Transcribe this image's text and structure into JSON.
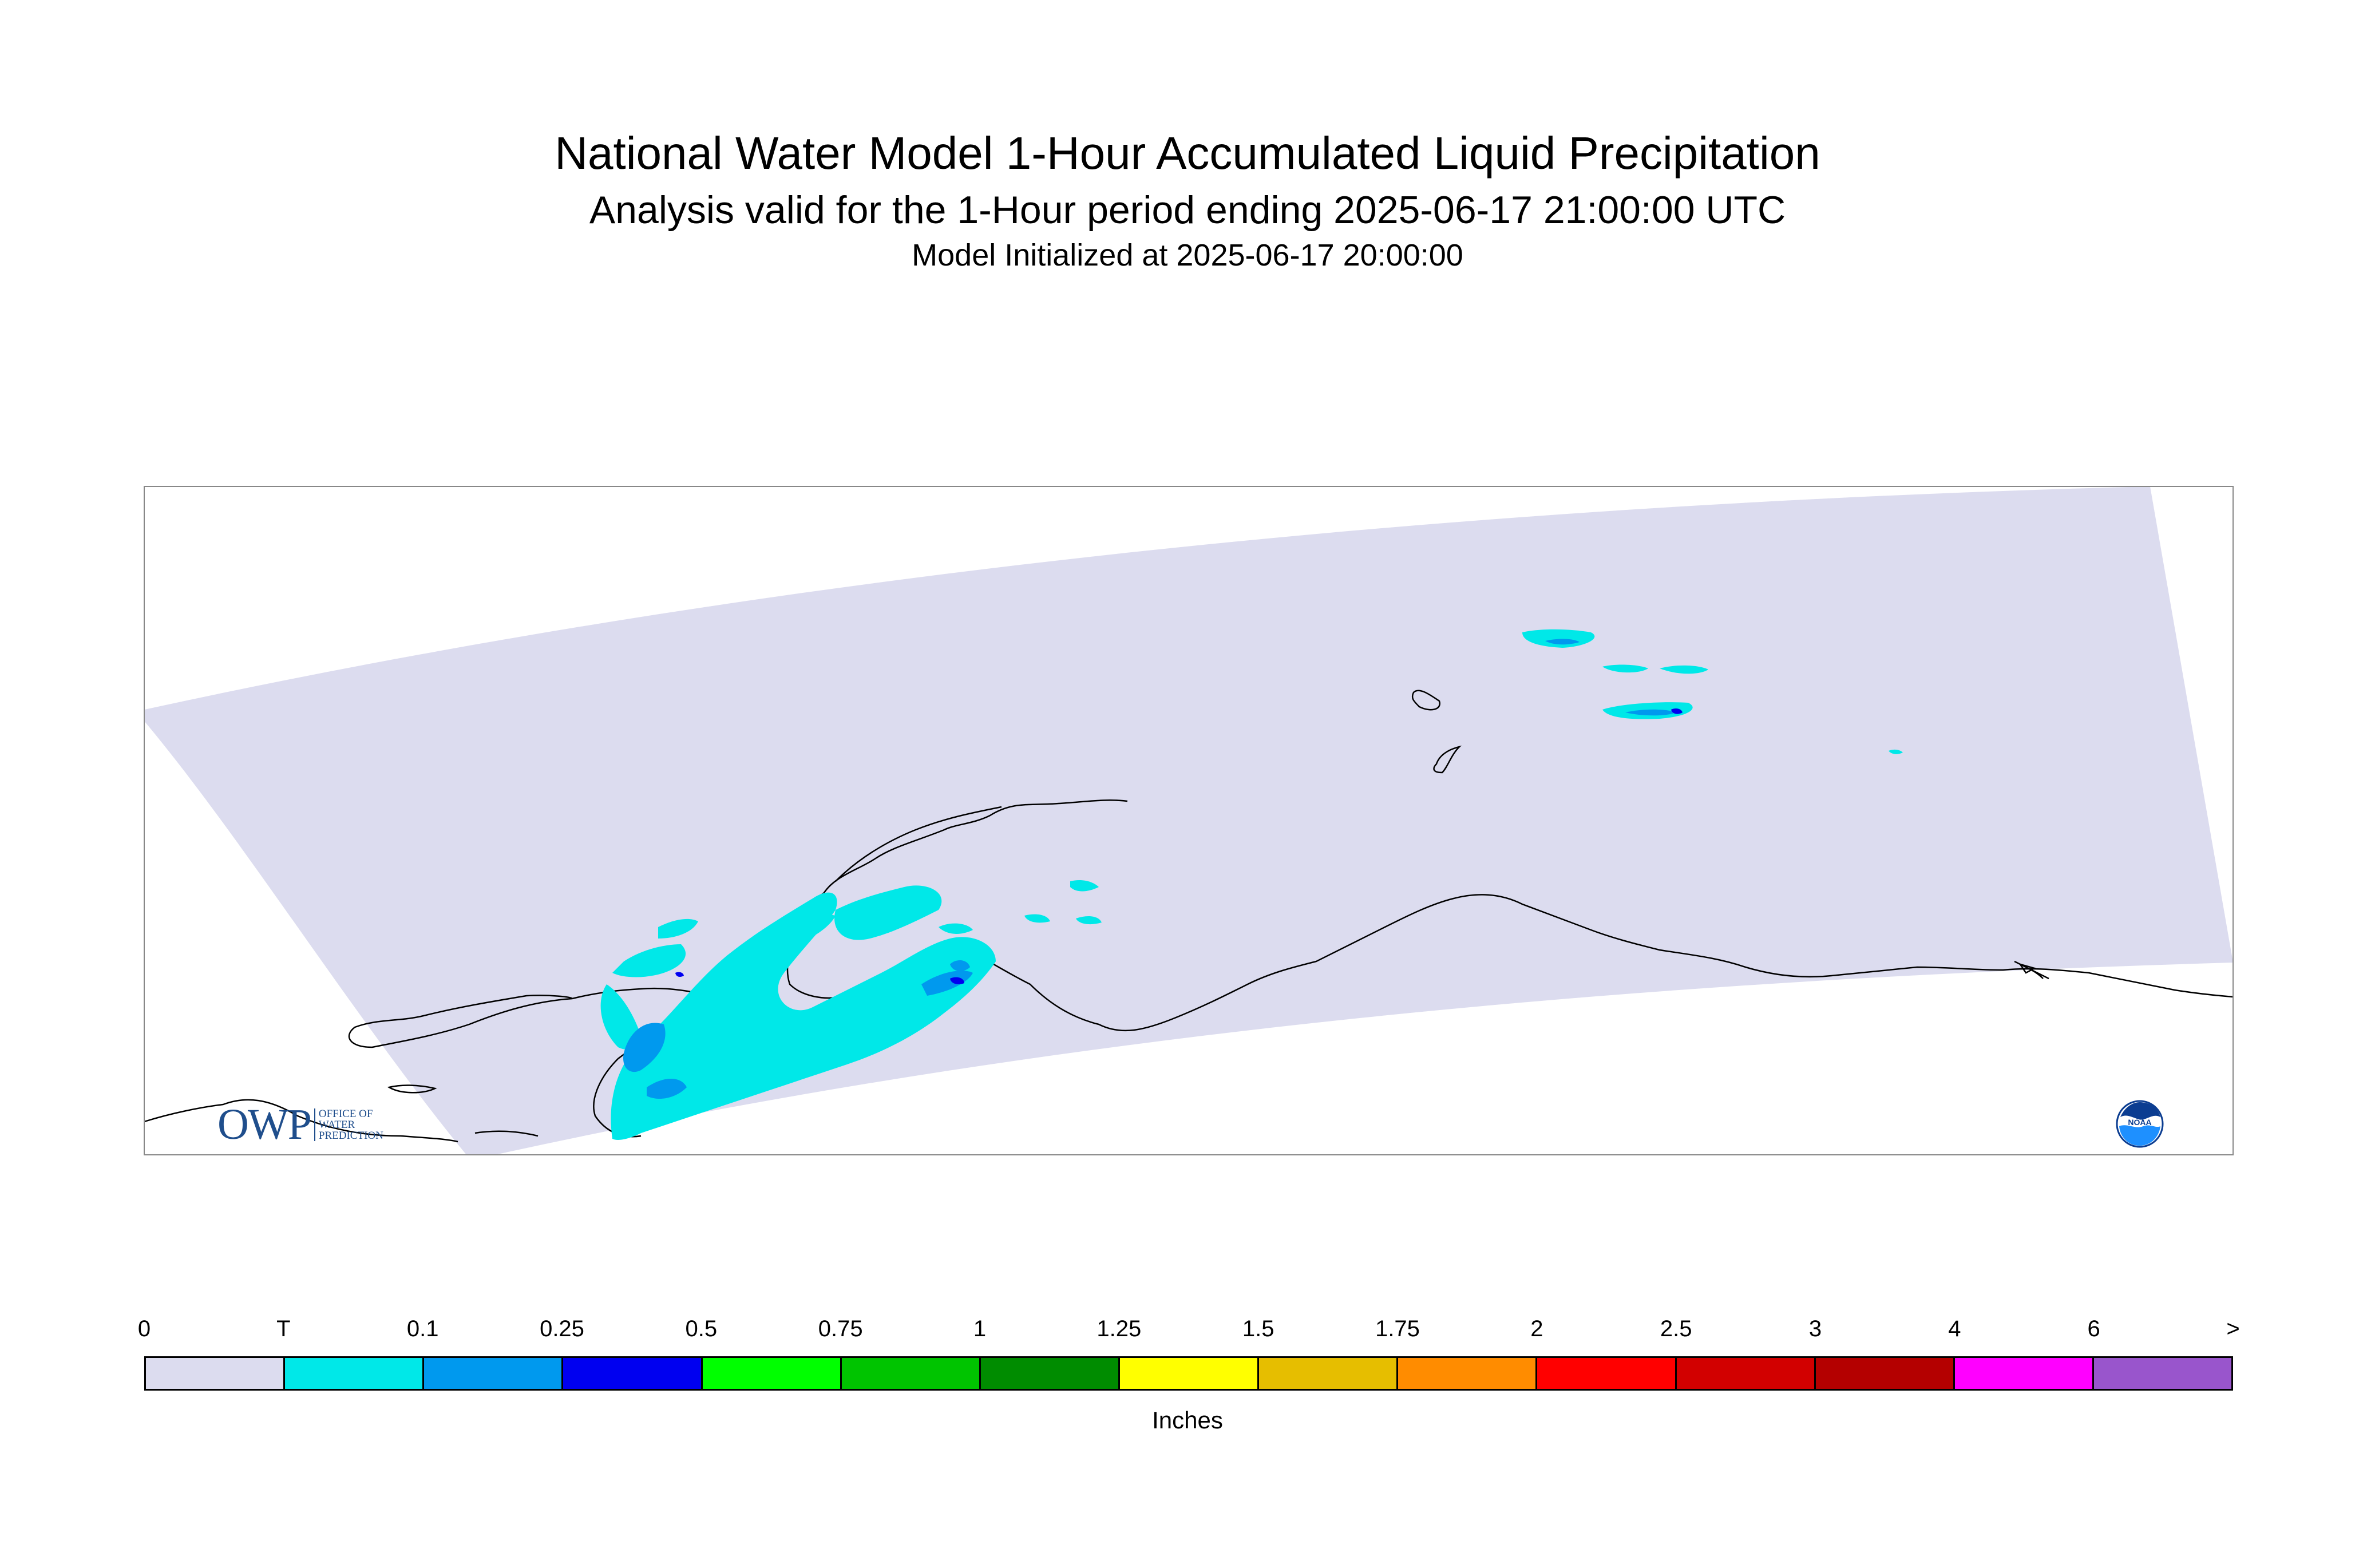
{
  "title": "National Water Model 1-Hour Accumulated Liquid Precipitation",
  "subtitle": "Analysis valid for the 1-Hour period ending 2025-06-17 21:00:00 UTC",
  "init_line": "Model Initialized at 2025-06-17 20:00:00",
  "colorbar": {
    "ticks": [
      "0",
      "T",
      "0.1",
      "0.25",
      "0.5",
      "0.75",
      "1",
      "1.25",
      "1.5",
      "1.75",
      "2",
      "2.5",
      "3",
      "4",
      "6",
      ">"
    ],
    "colors": [
      "#dcdcef",
      "#00e8e8",
      "#0099ee",
      "#0000f0",
      "#00ff00",
      "#00c400",
      "#008c00",
      "#ffff00",
      "#e6be00",
      "#ff8c00",
      "#ff0000",
      "#d20000",
      "#b40000",
      "#ff00ff",
      "#9955cc"
    ],
    "units": "Inches"
  },
  "logos": {
    "owp_mark": "OWP",
    "owp_lines": [
      "OFFICE OF",
      "WATER",
      "PREDICTION"
    ],
    "noaa": "NOAA"
  },
  "map": {
    "domain_color": "#dcdcef",
    "coast_color": "#000000",
    "frame_color": "#888888",
    "trace_color": "#00e8e8",
    "light_color": "#0099ee",
    "moderate_color": "#0000f0"
  }
}
